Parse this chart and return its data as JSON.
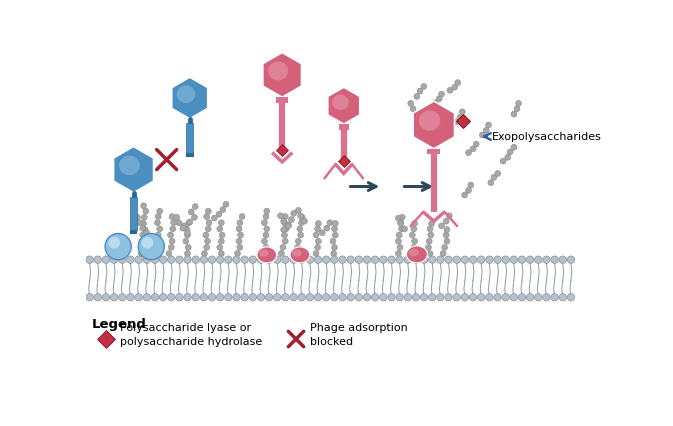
{
  "background_color": "#ffffff",
  "blue_color": "#4a8fc0",
  "blue_light": "#8ec0e0",
  "blue_dark": "#2a6898",
  "pink_color": "#d4607a",
  "pink_light": "#e8a0b0",
  "pink_mid": "#dc7090",
  "gray_epo": "#a8a8a8",
  "gray_epo_edge": "#888888",
  "mem_head_color": "#b8c0c8",
  "mem_head_edge": "#8090a0",
  "mem_tail_color": "#9098a8",
  "arrow_dark": "#2c4a5a",
  "arrow_blue": "#3060a0",
  "diamond_color": "#c03040",
  "cross_color": "#a02030",
  "legend_title": "Legend",
  "legend_diamond_line1": "Polysaccharide lyase or",
  "legend_diamond_line2": "polysaccharide hydrolase",
  "legend_cross_line1": "Phage adsorption",
  "legend_cross_line2": "blocked",
  "exo_label": "Exopolysaccharides"
}
